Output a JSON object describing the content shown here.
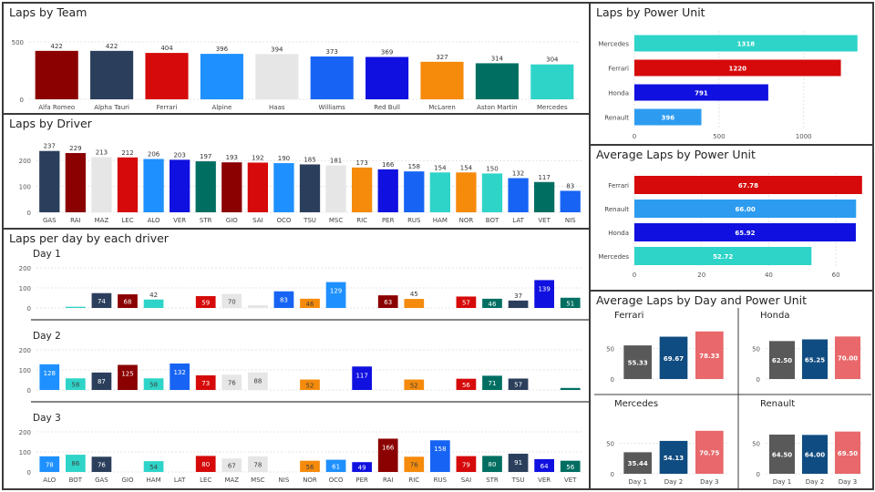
{
  "colors": {
    "alfa_romeo": "#8b0000",
    "alpha_tauri": "#2b3f5c",
    "ferrari": "#d60a0a",
    "alpine": "#1e90ff",
    "haas": "#e6e6e6",
    "williams": "#1764f4",
    "red_bull": "#1010e0",
    "mclaren": "#f58a0b",
    "aston_martin": "#006f62",
    "mercedes": "#2fd4c8",
    "honda": "#1010e0",
    "renault": "#2d9cf0",
    "day1": "#595959",
    "day2": "#0f4c81",
    "day3": "#e8686b"
  },
  "team_panel": {
    "title": "Laps by Team",
    "chart_data": {
      "type": "bar",
      "categories": [
        "Alfa Romeo",
        "Alpha Tauri",
        "Ferrari",
        "Alpine",
        "Haas",
        "Williams",
        "Red Bull",
        "McLaren",
        "Aston Martin",
        "Mercedes"
      ],
      "values": [
        422,
        422,
        404,
        396,
        394,
        373,
        369,
        327,
        314,
        304
      ],
      "value_labels": [
        "422",
        "422",
        "404",
        "396",
        "394",
        "373",
        "369",
        "327",
        "314",
        "304"
      ],
      "colors": [
        "#8b0000",
        "#2b3f5c",
        "#d60a0a",
        "#1e90ff",
        "#e6e6e6",
        "#1764f4",
        "#1010e0",
        "#f58a0b",
        "#006f62",
        "#2fd4c8"
      ],
      "yticks": [
        "0",
        "500"
      ],
      "ylim": [
        0,
        500
      ]
    }
  },
  "driver_panel": {
    "title": "Laps by Driver",
    "chart_data": {
      "type": "bar",
      "categories": [
        "GAS",
        "RAI",
        "MAZ",
        "LEC",
        "ALO",
        "VER",
        "STR",
        "GIO",
        "SAI",
        "OCO",
        "TSU",
        "MSC",
        "RIC",
        "PER",
        "RUS",
        "HAM",
        "NOR",
        "BOT",
        "LAT",
        "VET",
        "NIS"
      ],
      "values": [
        237,
        229,
        213,
        212,
        206,
        203,
        197,
        193,
        192,
        190,
        185,
        181,
        173,
        166,
        158,
        154,
        154,
        150,
        132,
        117,
        83
      ],
      "value_labels": [
        "237",
        "229",
        "213",
        "212",
        "206",
        "203",
        "197",
        "193",
        "192",
        "190",
        "185",
        "181",
        "173",
        "166",
        "158",
        "154",
        "154",
        "150",
        "132",
        "117",
        "83"
      ],
      "colors": [
        "#2b3f5c",
        "#8b0000",
        "#e6e6e6",
        "#d60a0a",
        "#1e90ff",
        "#1010e0",
        "#006f62",
        "#8b0000",
        "#d60a0a",
        "#1e90ff",
        "#2b3f5c",
        "#e6e6e6",
        "#f58a0b",
        "#1010e0",
        "#1764f4",
        "#2fd4c8",
        "#f58a0b",
        "#2fd4c8",
        "#1764f4",
        "#006f62",
        "#1764f4"
      ],
      "yticks": [
        "0",
        "100",
        "200"
      ],
      "ylim": [
        0,
        250
      ]
    }
  },
  "day_panel": {
    "title": "Laps per day by each driver",
    "chart_data": [
      {
        "type": "bar",
        "title": "Day 1",
        "categories": [
          "ALO",
          "BOT",
          "GAS",
          "GIO",
          "HAM",
          "LAT",
          "LEC",
          "MAZ",
          "MSC",
          "NIS",
          "NOR",
          "OCO",
          "PER",
          "RAI",
          "RIC",
          "RUS",
          "SAI",
          "STR",
          "TSU",
          "VER",
          "VET"
        ],
        "values": [
          0,
          6,
          74,
          68,
          42,
          0,
          59,
          70,
          14,
          83,
          46,
          129,
          0,
          63,
          45,
          0,
          57,
          46,
          37,
          139,
          51
        ],
        "value_labels": [
          "",
          "",
          "74",
          "68",
          "42",
          "",
          "59",
          "70",
          "",
          "83",
          "46",
          "129",
          "",
          "63",
          "45",
          "",
          "57",
          "46",
          "37",
          "139",
          "51"
        ],
        "yticks": [
          "0",
          "100",
          "200"
        ],
        "ylim": [
          0,
          200
        ]
      },
      {
        "type": "bar",
        "title": "Day 2",
        "categories": [
          "ALO",
          "BOT",
          "GAS",
          "GIO",
          "HAM",
          "LAT",
          "LEC",
          "MAZ",
          "MSC",
          "NIS",
          "NOR",
          "OCO",
          "PER",
          "RAI",
          "RIC",
          "RUS",
          "SAI",
          "STR",
          "TSU",
          "VER",
          "VET"
        ],
        "values": [
          128,
          58,
          87,
          125,
          58,
          132,
          73,
          76,
          88,
          0,
          52,
          0,
          117,
          0,
          52,
          0,
          56,
          71,
          57,
          0,
          10
        ],
        "value_labels": [
          "128",
          "58",
          "87",
          "125",
          "58",
          "132",
          "73",
          "76",
          "88",
          "",
          "52",
          "",
          "117",
          "",
          "52",
          "",
          "56",
          "71",
          "57",
          "",
          ""
        ],
        "yticks": [
          "0",
          "100",
          "200"
        ],
        "ylim": [
          0,
          200
        ]
      },
      {
        "type": "bar",
        "title": "Day 3",
        "categories": [
          "ALO",
          "BOT",
          "GAS",
          "GIO",
          "HAM",
          "LAT",
          "LEC",
          "MAZ",
          "MSC",
          "NIS",
          "NOR",
          "OCO",
          "PER",
          "RAI",
          "RIC",
          "RUS",
          "SAI",
          "STR",
          "TSU",
          "VER",
          "VET"
        ],
        "values": [
          78,
          86,
          76,
          0,
          54,
          0,
          80,
          67,
          78,
          0,
          56,
          61,
          49,
          166,
          76,
          158,
          79,
          80,
          91,
          64,
          56
        ],
        "value_labels": [
          "78",
          "86",
          "76",
          "",
          "54",
          "",
          "80",
          "67",
          "78",
          "",
          "56",
          "61",
          "49",
          "166",
          "76",
          "158",
          "79",
          "80",
          "91",
          "64",
          "56"
        ],
        "yticks": [
          "0",
          "100",
          "200"
        ],
        "ylim": [
          0,
          200
        ]
      }
    ],
    "bar_colors": [
      "#1e90ff",
      "#2fd4c8",
      "#2b3f5c",
      "#8b0000",
      "#2fd4c8",
      "#1764f4",
      "#d60a0a",
      "#e6e6e6",
      "#e6e6e6",
      "#1764f4",
      "#f58a0b",
      "#1e90ff",
      "#1010e0",
      "#8b0000",
      "#f58a0b",
      "#1764f4",
      "#d60a0a",
      "#006f62",
      "#2b3f5c",
      "#1010e0",
      "#006f62"
    ]
  },
  "power_unit_panel": {
    "title": "Laps by Power Unit",
    "chart_data": {
      "type": "bar",
      "orientation": "horizontal",
      "categories": [
        "Mercedes",
        "Ferrari",
        "Honda",
        "Renault"
      ],
      "values": [
        1318,
        1220,
        791,
        396
      ],
      "value_labels": [
        "1318",
        "1220",
        "791",
        "396"
      ],
      "colors": [
        "#2fd4c8",
        "#d60a0a",
        "#1010e0",
        "#2d9cf0"
      ],
      "xticks": [
        "0",
        "500",
        "1000"
      ],
      "xlim": [
        0,
        1400
      ]
    }
  },
  "avg_power_panel": {
    "title": "Average Laps by Power Unit",
    "chart_data": {
      "type": "bar",
      "orientation": "horizontal",
      "categories": [
        "Ferrari",
        "Renault",
        "Honda",
        "Mercedes"
      ],
      "values": [
        67.78,
        66.0,
        65.92,
        52.72
      ],
      "value_labels": [
        "67.78",
        "66.00",
        "65.92",
        "52.72"
      ],
      "colors": [
        "#d60a0a",
        "#2d9cf0",
        "#1010e0",
        "#2fd4c8"
      ],
      "xticks": [
        "0",
        "20",
        "40",
        "60"
      ],
      "xlim": [
        0,
        70
      ]
    }
  },
  "avg_day_panel": {
    "title": "Average Laps by Day and Power Unit",
    "chart_data": [
      {
        "type": "bar",
        "title": "Ferrari",
        "categories": [
          "Day 1",
          "Day 2",
          "Day 3"
        ],
        "values": [
          55.33,
          69.67,
          78.33
        ],
        "value_labels": [
          "55.33",
          "69.67",
          "78.33"
        ],
        "yticks": [
          "0",
          "50"
        ],
        "ylim": [
          0,
          90
        ]
      },
      {
        "type": "bar",
        "title": "Honda",
        "categories": [
          "Day 1",
          "Day 2",
          "Day 3"
        ],
        "values": [
          62.5,
          65.25,
          70.0
        ],
        "value_labels": [
          "62.50",
          "65.25",
          "70.00"
        ],
        "yticks": [
          "0",
          "50"
        ],
        "ylim": [
          0,
          90
        ]
      },
      {
        "type": "bar",
        "title": "Mercedes",
        "categories": [
          "Day 1",
          "Day 2",
          "Day 3"
        ],
        "values": [
          35.44,
          54.13,
          70.75
        ],
        "value_labels": [
          "35.44",
          "54.13",
          "70.75"
        ],
        "yticks": [
          "0",
          "50"
        ],
        "ylim": [
          0,
          90
        ]
      },
      {
        "type": "bar",
        "title": "Renault",
        "categories": [
          "Day 1",
          "Day 2",
          "Day 3"
        ],
        "values": [
          64.5,
          64.0,
          69.5
        ],
        "value_labels": [
          "64.50",
          "64.00",
          "69.50"
        ],
        "yticks": [
          "0",
          "50"
        ],
        "ylim": [
          0,
          90
        ]
      }
    ]
  }
}
